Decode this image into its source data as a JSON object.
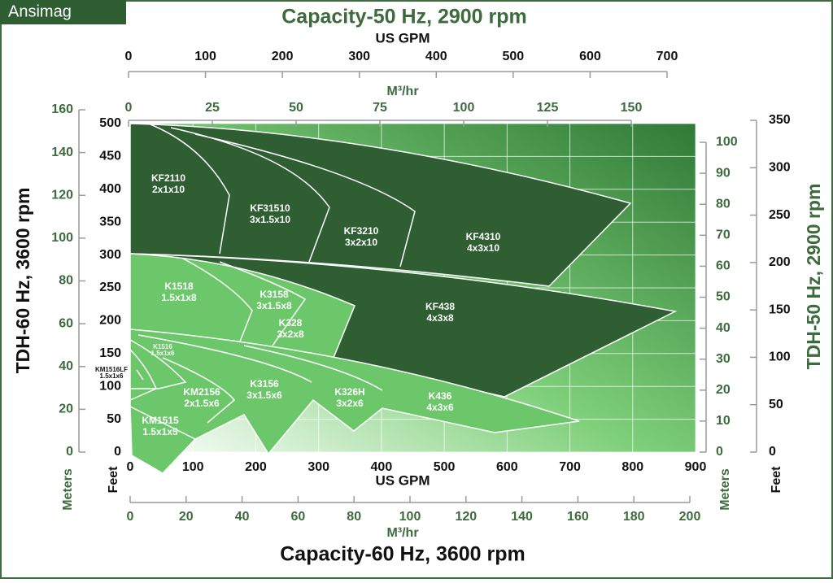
{
  "brand": "Ansimag",
  "chart_data": {
    "type": "coverage",
    "title": "Capacity-60 Hz, 3600 rpm",
    "top_title": "Capacity-50 Hz, 2900 rpm",
    "xlabel": "US GPM",
    "xlim": [
      0,
      900
    ],
    "xticks": [
      0,
      100,
      200,
      300,
      400,
      500,
      600,
      700,
      800,
      900
    ],
    "x_m3": {
      "label": "M³/hr",
      "lim": [
        0,
        200
      ],
      "ticks": [
        0,
        20,
        40,
        60,
        80,
        100,
        120,
        140,
        160,
        180,
        200
      ]
    },
    "top_x": {
      "label": "US GPM",
      "lim": [
        0,
        700
      ],
      "ticks": [
        0,
        100,
        200,
        300,
        400,
        500,
        600,
        700
      ]
    },
    "top_x_m3": {
      "label": "M³/hr",
      "lim": [
        0,
        150
      ],
      "ticks": [
        0,
        25,
        50,
        75,
        100,
        125,
        150
      ]
    },
    "ylabel": "TDH-60 Hz, 3600 rpm",
    "yunit": "Feet",
    "ylim": [
      0,
      500
    ],
    "yticks": [
      0,
      50,
      100,
      150,
      200,
      250,
      300,
      350,
      400,
      450,
      500
    ],
    "y_m": {
      "label": "Meters",
      "lim": [
        0,
        160
      ],
      "ticks": [
        0,
        20,
        40,
        60,
        80,
        100,
        120,
        140,
        160
      ]
    },
    "y2label": "TDH-50 Hz, 2900 rpm",
    "y2_m": {
      "label": "Meters",
      "lim": [
        0,
        100
      ],
      "ticks": [
        0,
        10,
        20,
        30,
        40,
        50,
        60,
        70,
        80,
        90,
        100
      ]
    },
    "y2_ft": {
      "label": "Feet",
      "lim": [
        0,
        350
      ],
      "ticks": [
        0,
        50,
        100,
        150,
        200,
        250,
        300,
        350
      ]
    },
    "grid": true,
    "regions": [
      {
        "name": "KF2110",
        "size": "2x1x10"
      },
      {
        "name": "KF31510",
        "size": "3x1.5x10"
      },
      {
        "name": "KF3210",
        "size": "3x2x10"
      },
      {
        "name": "KF4310",
        "size": "4x3x10"
      },
      {
        "name": "K1518",
        "size": "1.5x1x8"
      },
      {
        "name": "K3158",
        "size": "3x1.5x8"
      },
      {
        "name": "K328",
        "size": "3x2x8"
      },
      {
        "name": "KF438",
        "size": "4x3x8"
      },
      {
        "name": "K1516",
        "size": "1.5x1x6"
      },
      {
        "name": "KM1516LF",
        "size": "1.5x1x6"
      },
      {
        "name": "KM2156",
        "size": "2x1.5x6"
      },
      {
        "name": "K3156",
        "size": "3x1.5x6"
      },
      {
        "name": "K326H",
        "size": "3x2x6"
      },
      {
        "name": "K436",
        "size": "4x3x6"
      },
      {
        "name": "KM1515",
        "size": "1.5x1x5"
      }
    ]
  }
}
